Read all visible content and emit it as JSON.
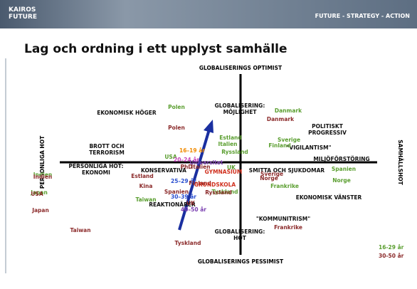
{
  "header": {
    "logo": [
      "KAIROS",
      "FUTURE"
    ],
    "tagline": "FUTURE - STRATEGY - ACTION"
  },
  "title": "Lag och ordning i ett upplyst samhälle",
  "axes": {
    "top": "GLOBALISERINGS OPTIMIST",
    "bottom": "GLOBALISERINGS PESSIMIST",
    "left": "PERSONLIGA HOT",
    "right": "SAMHÄLLSHOT"
  },
  "concepts": [
    [
      "EKONOMISK HÖGER"
    ],
    [
      "GLOBALISERING:",
      "MÖJLIGHET"
    ],
    [
      "POLITISKT",
      "PROGRESSIV"
    ],
    [
      "BROTT OCH",
      "TERRORISM"
    ],
    [
      "\"VIGILANTISM\""
    ],
    [
      "MILJÖFÖRSTÖRING"
    ],
    [
      "PERSONLIGA HOT:",
      "EKONOMI"
    ],
    [
      "KONSERVATIVA"
    ],
    [
      "SMITTA OCH SJUKDOMAR"
    ],
    [
      "EKONOMISK VÄNSTER"
    ],
    [
      "REAKTIONÄRER"
    ],
    [
      "\"KOMMUNITRISM\""
    ],
    [
      "GLOBALISERING:",
      "HOT"
    ]
  ],
  "labels": [
    "Polen",
    "Polen",
    "Danmark",
    "Danmark",
    "Estland",
    "Italien",
    "Sverige",
    "Finland",
    "Ryssland",
    "USA",
    "16–19 år",
    "20–24 år",
    "Universitet",
    "PhD",
    "Italien",
    "UK",
    "Sverige",
    "Spanien",
    "Indien",
    "Indien",
    "Estland",
    "GYMNASIUM",
    "25–29 år",
    "Finland",
    "GRUNDSKOLA",
    "Norge",
    "Norge",
    "Frankrike",
    "Kina",
    "Tyskland",
    "Ryssland",
    "Spanien",
    "Japan",
    "USA",
    "Taiwan",
    "30–39 år",
    "UK",
    "40–50 år",
    "Japan",
    "Frankrike",
    "Taiwan",
    "Tyskland"
  ],
  "legend": [
    "16-29 år",
    "30-50 år"
  ]
}
